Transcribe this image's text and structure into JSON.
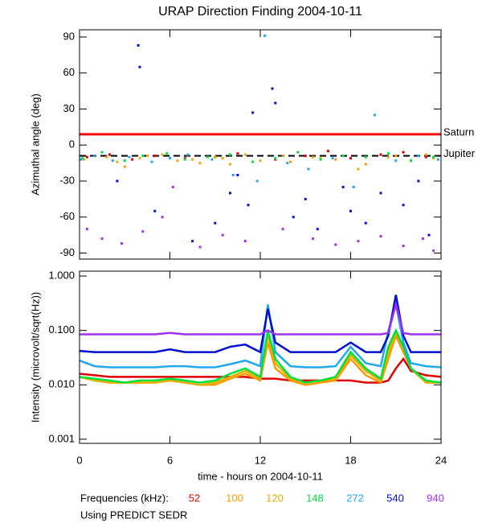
{
  "chart_data": [
    {
      "type": "scatter",
      "title": "URAP Direction Finding  2004-10-11",
      "ylabel": "Azimuthal angle (deg)",
      "xlim": [
        0,
        24
      ],
      "xticks": [
        0,
        6,
        12,
        18,
        24
      ],
      "ylim": [
        -95,
        96
      ],
      "yticks": [
        90,
        60,
        30,
        0,
        -30,
        -60,
        -90
      ],
      "reference_lines": [
        {
          "label": "Saturn",
          "y": 9,
          "color": "#ff0000",
          "style": "solid"
        },
        {
          "label": "Jupiter",
          "y": -9,
          "color": "#000000",
          "style": "dashed"
        }
      ],
      "series": [
        {
          "color": "#e00000",
          "x": [
            0.5,
            2,
            3.5,
            5,
            7,
            9,
            10.5,
            13,
            15,
            16.5,
            18,
            20,
            21.5,
            23
          ],
          "y": [
            -10,
            -8,
            -12,
            -9,
            -11,
            -10,
            -7,
            -12,
            -9,
            -5,
            -11,
            -8,
            -6,
            -10
          ]
        },
        {
          "color": "#ff9a00",
          "x": [
            0.3,
            1.8,
            3,
            4.5,
            6.5,
            8,
            9.5,
            11,
            14,
            15.5,
            17,
            19,
            21,
            23.5
          ],
          "y": [
            -12,
            -10,
            -18,
            -9,
            -13,
            -15,
            -11,
            -8,
            -14,
            -10,
            -12,
            -16,
            -9,
            -11
          ]
        },
        {
          "color": "#e0b000",
          "x": [
            1,
            2.5,
            4,
            5.5,
            7.5,
            9,
            10,
            12,
            13.5,
            16,
            18.5,
            20.5,
            22,
            23
          ],
          "y": [
            -9,
            -14,
            -11,
            -8,
            -12,
            -10,
            -16,
            -13,
            -9,
            -11,
            -20,
            -10,
            -13,
            -8
          ]
        },
        {
          "color": "#00e040",
          "x": [
            0.2,
            1.5,
            3,
            4.2,
            5.8,
            7,
            8.5,
            10,
            11.5,
            13,
            14.5,
            16,
            17.5,
            19,
            20.5,
            22,
            23.5
          ],
          "y": [
            -11,
            -6,
            -13,
            -9,
            -7,
            -12,
            -10,
            -8,
            -14,
            -11,
            -6,
            -12,
            -9,
            -10,
            -7,
            -13,
            -10
          ]
        },
        {
          "color": "#20a8f0",
          "x": [
            0.1,
            1,
            2.2,
            3.3,
            4.8,
            6,
            7.2,
            8.8,
            10.2,
            11.8,
            12.3,
            13.8,
            15.2,
            16.8,
            18.2,
            19.6,
            21,
            22.5,
            23.8
          ],
          "y": [
            -12,
            -9,
            -13,
            -10,
            -14,
            -11,
            -8,
            -12,
            -25,
            -30,
            91,
            -15,
            -20,
            -11,
            -35,
            25,
            -13,
            -9,
            -12
          ]
        },
        {
          "color": "#0010d0",
          "x": [
            2.5,
            3.9,
            4,
            5,
            7.5,
            9,
            10,
            10.5,
            11.2,
            11.5,
            12.8,
            13,
            14.2,
            15,
            15.8,
            17.5,
            18,
            19,
            20,
            21.5,
            22.5,
            23.2
          ],
          "y": [
            -30,
            83,
            65,
            -55,
            -80,
            -65,
            -40,
            -25,
            -50,
            27,
            47,
            35,
            -60,
            -45,
            -70,
            -35,
            -55,
            -65,
            -40,
            -50,
            -30,
            -75
          ]
        },
        {
          "color": "#a030f0",
          "x": [
            0.5,
            1.5,
            2.8,
            4.2,
            5.5,
            6.2,
            8,
            9.5,
            11,
            13.5,
            15.5,
            17,
            18.5,
            20,
            21.5,
            22.8,
            23.5
          ],
          "y": [
            -70,
            -78,
            -82,
            -72,
            -60,
            -35,
            -85,
            -75,
            -80,
            -70,
            -78,
            -83,
            -80,
            -76,
            -84,
            -78,
            -88
          ]
        }
      ]
    },
    {
      "type": "line",
      "ylabel": "Intensity (microvolt/sqrt(Hz))",
      "xlabel": "time - hours on 2004-10-11",
      "xlim": [
        0,
        24
      ],
      "xticks": [
        0,
        6,
        12,
        18,
        24
      ],
      "log_scale": true,
      "ylim": [
        0.00084,
        1.23
      ],
      "yticks": [
        {
          "value": 1,
          "label": "1.000"
        },
        {
          "value": 0.1,
          "label": "0.100"
        },
        {
          "value": 0.01,
          "label": "0.010"
        },
        0.001
      ],
      "legend_title": "Frequencies (kHz):",
      "footnote": "Using PREDICT SEDR",
      "x": [
        0,
        1,
        2,
        3,
        4,
        5,
        6,
        7,
        8,
        9,
        10,
        11,
        12,
        12.5,
        13,
        14,
        15,
        16,
        17,
        18,
        19,
        20,
        20.5,
        21,
        21.5,
        22,
        23,
        24
      ],
      "series": [
        {
          "name": "52",
          "color": "#e00000",
          "values": [
            0.016,
            0.015,
            0.014,
            0.014,
            0.014,
            0.014,
            0.014,
            0.014,
            0.014,
            0.014,
            0.014,
            0.014,
            0.013,
            0.013,
            0.013,
            0.012,
            0.012,
            0.012,
            0.012,
            0.012,
            0.011,
            0.011,
            0.012,
            0.02,
            0.03,
            0.018,
            0.015,
            0.014
          ]
        },
        {
          "name": "100",
          "color": "#ff9a00",
          "values": [
            0.014,
            0.012,
            0.011,
            0.011,
            0.011,
            0.011,
            0.012,
            0.011,
            0.01,
            0.01,
            0.013,
            0.016,
            0.012,
            0.06,
            0.02,
            0.012,
            0.01,
            0.011,
            0.012,
            0.03,
            0.015,
            0.011,
            0.03,
            0.08,
            0.04,
            0.02,
            0.011,
            0.011
          ]
        },
        {
          "name": "120",
          "color": "#e0b000",
          "values": [
            0.014,
            0.012,
            0.011,
            0.011,
            0.011,
            0.011,
            0.012,
            0.011,
            0.01,
            0.011,
            0.014,
            0.018,
            0.013,
            0.08,
            0.025,
            0.013,
            0.011,
            0.012,
            0.013,
            0.035,
            0.018,
            0.012,
            0.04,
            0.09,
            0.05,
            0.02,
            0.011,
            0.011
          ]
        },
        {
          "name": "148",
          "color": "#00e040",
          "values": [
            0.014,
            0.013,
            0.012,
            0.011,
            0.012,
            0.012,
            0.013,
            0.012,
            0.011,
            0.012,
            0.016,
            0.02,
            0.014,
            0.1,
            0.03,
            0.014,
            0.011,
            0.012,
            0.014,
            0.04,
            0.02,
            0.013,
            0.05,
            0.1,
            0.05,
            0.02,
            0.012,
            0.011
          ]
        },
        {
          "name": "272",
          "color": "#20a8f0",
          "values": [
            0.028,
            0.022,
            0.021,
            0.021,
            0.021,
            0.021,
            0.022,
            0.022,
            0.021,
            0.021,
            0.024,
            0.028,
            0.022,
            0.3,
            0.04,
            0.022,
            0.021,
            0.021,
            0.022,
            0.05,
            0.025,
            0.022,
            0.1,
            0.3,
            0.06,
            0.025,
            0.022,
            0.021
          ]
        },
        {
          "name": "540",
          "color": "#0010d0",
          "values": [
            0.042,
            0.04,
            0.04,
            0.04,
            0.04,
            0.04,
            0.045,
            0.04,
            0.04,
            0.04,
            0.05,
            0.055,
            0.04,
            0.25,
            0.06,
            0.04,
            0.04,
            0.04,
            0.04,
            0.06,
            0.04,
            0.04,
            0.08,
            0.45,
            0.08,
            0.04,
            0.04,
            0.04
          ]
        },
        {
          "name": "940",
          "color": "#a030f0",
          "values": [
            0.085,
            0.085,
            0.085,
            0.085,
            0.085,
            0.085,
            0.09,
            0.085,
            0.085,
            0.085,
            0.085,
            0.085,
            0.085,
            0.1,
            0.085,
            0.085,
            0.085,
            0.085,
            0.085,
            0.085,
            0.085,
            0.085,
            0.09,
            0.3,
            0.09,
            0.085,
            0.085,
            0.085
          ]
        }
      ]
    }
  ]
}
